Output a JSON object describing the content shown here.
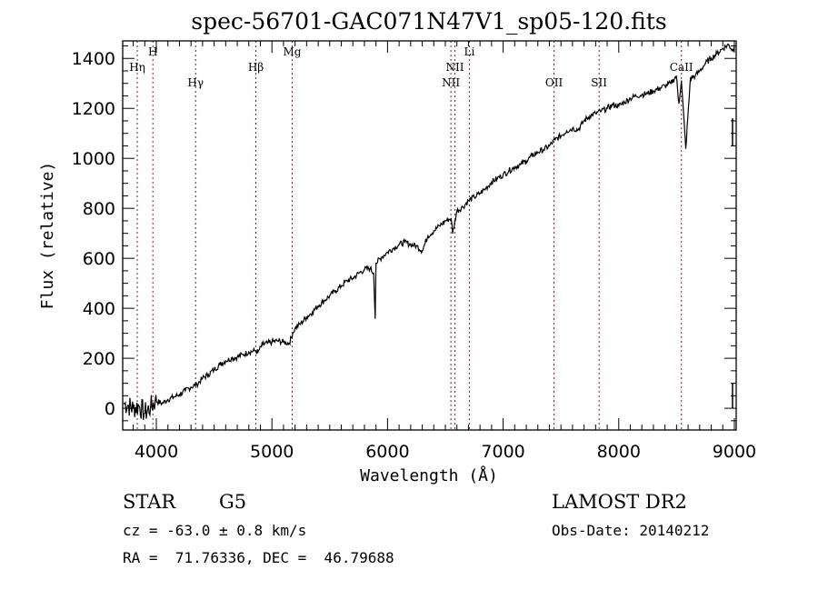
{
  "chart_data": {
    "type": "line",
    "title": "spec-56701-GAC071N47V1_sp05-120.fits",
    "xlabel": "Wavelength (Å)",
    "ylabel": "Flux (relative)",
    "xlim": [
      3709,
      9016
    ],
    "ylim": [
      -87,
      1470
    ],
    "xticks": [
      4000,
      5000,
      6000,
      7000,
      8000,
      9000
    ],
    "xtick_labels": [
      "4000",
      "5000",
      "6000",
      "7000",
      "8000",
      "9000"
    ],
    "yticks": [
      0,
      200,
      400,
      600,
      800,
      1000,
      1200,
      1400
    ],
    "ytick_labels": [
      "0",
      "200",
      "400",
      "600",
      "800",
      "1000",
      "1200",
      "1400"
    ],
    "grid": false,
    "line_color": "#000000",
    "marker_color": "#8b1a1a",
    "spectral_lines": [
      {
        "name": "Hη",
        "wavelength": 3835,
        "label_row": 2
      },
      {
        "name": "H",
        "wavelength": 3970,
        "label_row": 1
      },
      {
        "name": "Hγ",
        "wavelength": 4340,
        "label_row": 3
      },
      {
        "name": "Hβ",
        "wavelength": 4861,
        "label_row": 2
      },
      {
        "name": "Mg",
        "wavelength": 5175,
        "label_row": 1
      },
      {
        "name": "NII",
        "wavelength": 6548,
        "label_row": 3
      },
      {
        "name": "NII",
        "wavelength": 6583,
        "label_row": 2
      },
      {
        "name": "Li",
        "wavelength": 6708,
        "label_row": 1
      },
      {
        "name": "OII",
        "wavelength": 7440,
        "label_row": 3
      },
      {
        "name": "SII",
        "wavelength": 7830,
        "label_row": 3
      },
      {
        "name": "CaII",
        "wavelength": 8542,
        "label_row": 2
      }
    ],
    "series": [
      {
        "name": "flux",
        "x": [
          3720,
          3760,
          3800,
          3850,
          3900,
          3950,
          3990,
          4050,
          4100,
          4150,
          4200,
          4250,
          4300,
          4350,
          4400,
          4450,
          4500,
          4550,
          4600,
          4650,
          4700,
          4750,
          4800,
          4850,
          4880,
          4920,
          4960,
          5000,
          5050,
          5100,
          5150,
          5180,
          5200,
          5250,
          5300,
          5350,
          5400,
          5450,
          5500,
          5550,
          5600,
          5650,
          5700,
          5750,
          5800,
          5850,
          5880,
          5893,
          5900,
          5950,
          6000,
          6050,
          6100,
          6150,
          6200,
          6250,
          6300,
          6350,
          6400,
          6450,
          6500,
          6550,
          6563,
          6600,
          6650,
          6700,
          6750,
          6800,
          6850,
          6900,
          6950,
          7000,
          7050,
          7100,
          7150,
          7200,
          7250,
          7300,
          7350,
          7400,
          7450,
          7500,
          7550,
          7600,
          7650,
          7700,
          7750,
          7800,
          7850,
          7900,
          7950,
          8000,
          8050,
          8100,
          8150,
          8200,
          8250,
          8300,
          8350,
          8400,
          8450,
          8498,
          8520,
          8542,
          8580,
          8620,
          8662,
          8700,
          8750,
          8800,
          8850,
          8900,
          8950,
          8990,
          9000
        ],
        "y": [
          20,
          10,
          0,
          10,
          -20,
          5,
          30,
          20,
          35,
          45,
          55,
          70,
          85,
          95,
          120,
          135,
          155,
          175,
          190,
          200,
          205,
          215,
          225,
          230,
          225,
          255,
          260,
          265,
          270,
          265,
          260,
          300,
          320,
          340,
          365,
          385,
          410,
          430,
          450,
          470,
          490,
          510,
          520,
          540,
          555,
          560,
          540,
          360,
          580,
          605,
          625,
          640,
          655,
          665,
          655,
          650,
          630,
          690,
          710,
          730,
          750,
          760,
          700,
          790,
          805,
          830,
          845,
          860,
          880,
          905,
          920,
          935,
          950,
          965,
          975,
          990,
          1010,
          1025,
          1035,
          1050,
          1075,
          1090,
          1110,
          1120,
          1115,
          1150,
          1170,
          1180,
          1190,
          1200,
          1215,
          1210,
          1225,
          1240,
          1250,
          1255,
          1260,
          1270,
          1280,
          1290,
          1300,
          1330,
          1220,
          1310,
          1040,
          1320,
          1330,
          1350,
          1380,
          1400,
          1420,
          1440,
          1455,
          1430,
          1450
        ]
      }
    ]
  },
  "info": {
    "object_class": "STAR",
    "subclass": "G5",
    "redshift_line": "cz = -63.0 ± 0.8 km/s",
    "coords_line": "RA =  71.76336, DEC =  46.79688",
    "survey": "LAMOST DR2",
    "obs_date_line": "Obs-Date: 20140212"
  }
}
